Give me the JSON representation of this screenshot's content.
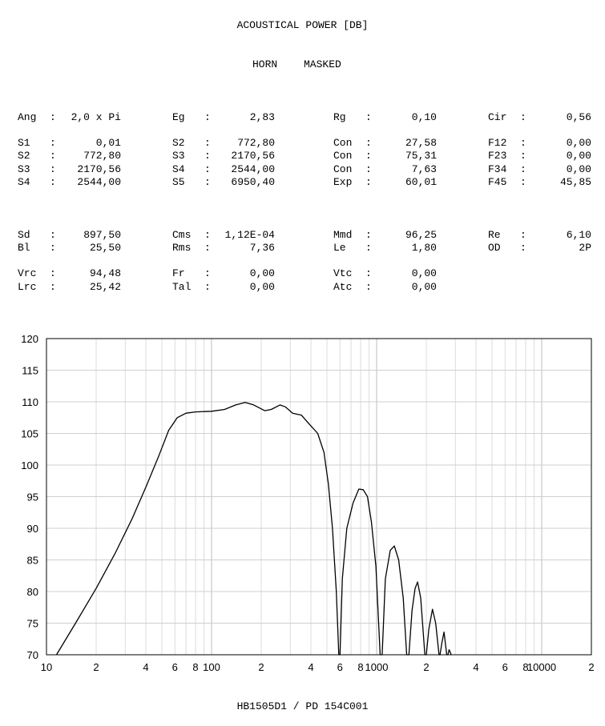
{
  "header": {
    "title": "ACOUSTICAL POWER [DB]",
    "subtitle_left": "HORN",
    "subtitle_right": "MASKED"
  },
  "block1": {
    "rows": [
      [
        {
          "label": "Ang",
          "value": "2,0 x Pi"
        },
        {
          "label": "Eg",
          "value": "2,83"
        },
        {
          "label": "Rg",
          "value": "0,10"
        },
        {
          "label": "Cir",
          "value": "0,56"
        }
      ],
      [
        {
          "label": "S1",
          "value": "0,01"
        },
        {
          "label": "S2",
          "value": "772,80"
        },
        {
          "label": "Con",
          "value": "27,58"
        },
        {
          "label": "F12",
          "value": "0,00"
        }
      ],
      [
        {
          "label": "S2",
          "value": "772,80"
        },
        {
          "label": "S3",
          "value": "2170,56"
        },
        {
          "label": "Con",
          "value": "75,31"
        },
        {
          "label": "F23",
          "value": "0,00"
        }
      ],
      [
        {
          "label": "S3",
          "value": "2170,56"
        },
        {
          "label": "S4",
          "value": "2544,00"
        },
        {
          "label": "Con",
          "value": "7,63"
        },
        {
          "label": "F34",
          "value": "0,00"
        }
      ],
      [
        {
          "label": "S4",
          "value": "2544,00"
        },
        {
          "label": "S5",
          "value": "6950,40"
        },
        {
          "label": "Exp",
          "value": "60,01"
        },
        {
          "label": "F45",
          "value": "45,85"
        }
      ]
    ]
  },
  "block2": {
    "rows": [
      [
        {
          "label": "Sd",
          "value": "897,50"
        },
        {
          "label": "Cms",
          "value": "1,12E-04"
        },
        {
          "label": "Mmd",
          "value": "96,25"
        },
        {
          "label": "Re",
          "value": "6,10"
        }
      ],
      [
        {
          "label": "Bl",
          "value": "25,50"
        },
        {
          "label": "Rms",
          "value": "7,36"
        },
        {
          "label": "Le",
          "value": "1,80"
        },
        {
          "label": "OD",
          "value": "2P"
        }
      ],
      [
        {
          "label": "Vrc",
          "value": "94,48"
        },
        {
          "label": "Fr",
          "value": "0,00"
        },
        {
          "label": "Vtc",
          "value": "0,00"
        },
        null
      ],
      [
        {
          "label": "Lrc",
          "value": "25,42"
        },
        {
          "label": "Tal",
          "value": "0,00"
        },
        {
          "label": "Atc",
          "value": "0,00"
        },
        null
      ]
    ]
  },
  "footer": {
    "label": "HB1505D1 / PD 154C001"
  },
  "chart_data": {
    "type": "line",
    "x_scale": "log",
    "xlim": [
      10,
      20000
    ],
    "ylim": [
      70,
      120
    ],
    "yticks": [
      70,
      75,
      80,
      85,
      90,
      95,
      100,
      105,
      110,
      115,
      120
    ],
    "xtick_labels": [
      {
        "x": 10,
        "label": "10"
      },
      {
        "x": 20,
        "label": "2"
      },
      {
        "x": 40,
        "label": "4"
      },
      {
        "x": 60,
        "label": "6"
      },
      {
        "x": 80,
        "label": "8"
      },
      {
        "x": 100,
        "label": "100"
      },
      {
        "x": 200,
        "label": "2"
      },
      {
        "x": 400,
        "label": "4"
      },
      {
        "x": 600,
        "label": "6"
      },
      {
        "x": 800,
        "label": "8"
      },
      {
        "x": 1000,
        "label": "1000"
      },
      {
        "x": 2000,
        "label": "2"
      },
      {
        "x": 4000,
        "label": "4"
      },
      {
        "x": 6000,
        "label": "6"
      },
      {
        "x": 8000,
        "label": "8"
      },
      {
        "x": 10000,
        "label": "10000"
      },
      {
        "x": 20000,
        "label": "2"
      }
    ],
    "grid": true,
    "series": [
      {
        "color": "#000000",
        "points": [
          [
            11.5,
            70
          ],
          [
            15,
            75
          ],
          [
            20,
            80.5
          ],
          [
            26,
            86
          ],
          [
            33,
            91.5
          ],
          [
            40,
            96.5
          ],
          [
            48,
            101.5
          ],
          [
            55,
            105.5
          ],
          [
            62,
            107.5
          ],
          [
            70,
            108.2
          ],
          [
            80,
            108.4
          ],
          [
            100,
            108.5
          ],
          [
            120,
            108.8
          ],
          [
            140,
            109.5
          ],
          [
            160,
            109.9
          ],
          [
            180,
            109.5
          ],
          [
            210,
            108.6
          ],
          [
            230,
            108.8
          ],
          [
            260,
            109.5
          ],
          [
            280,
            109.2
          ],
          [
            310,
            108.2
          ],
          [
            350,
            107.9
          ],
          [
            390,
            106.5
          ],
          [
            440,
            105
          ],
          [
            480,
            102
          ],
          [
            510,
            97
          ],
          [
            540,
            90
          ],
          [
            570,
            80
          ],
          [
            590,
            70
          ],
          [
            600,
            70
          ],
          [
            620,
            82
          ],
          [
            660,
            90
          ],
          [
            720,
            94
          ],
          [
            780,
            96.2
          ],
          [
            830,
            96.1
          ],
          [
            880,
            95
          ],
          [
            930,
            91
          ],
          [
            990,
            84
          ],
          [
            1050,
            70
          ],
          [
            1080,
            70
          ],
          [
            1130,
            82
          ],
          [
            1210,
            86.5
          ],
          [
            1280,
            87.2
          ],
          [
            1360,
            85
          ],
          [
            1450,
            79
          ],
          [
            1520,
            70
          ],
          [
            1570,
            70
          ],
          [
            1640,
            77
          ],
          [
            1710,
            80.5
          ],
          [
            1770,
            81.5
          ],
          [
            1850,
            79
          ],
          [
            1960,
            70
          ],
          [
            2000,
            70
          ],
          [
            2070,
            74
          ],
          [
            2180,
            77.2
          ],
          [
            2280,
            75
          ],
          [
            2390,
            70
          ],
          [
            2420,
            70
          ],
          [
            2490,
            72
          ],
          [
            2560,
            73.6
          ],
          [
            2660,
            70
          ],
          [
            2700,
            70
          ],
          [
            2750,
            70.8
          ],
          [
            2830,
            70
          ]
        ]
      }
    ]
  }
}
